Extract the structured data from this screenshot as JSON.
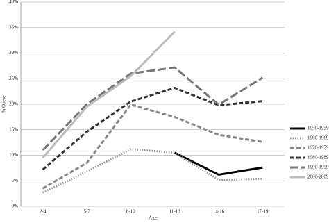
{
  "chart_data": {
    "type": "line",
    "x_label": "Age",
    "y_label": "% Obese",
    "categories": [
      "2-4",
      "5-7",
      "8-10",
      "11-13",
      "14-16",
      "17-19"
    ],
    "series": [
      {
        "name": "1950-1959",
        "color": "#000000",
        "style": "solid",
        "values": [
          null,
          null,
          null,
          10.5,
          6.2,
          7.6
        ]
      },
      {
        "name": "1960-1969",
        "color": "#999999",
        "style": "dotted",
        "values": [
          2.7,
          6.8,
          11.2,
          10.5,
          5.2,
          5.4
        ]
      },
      {
        "name": "1970-1979",
        "color": "#888888",
        "style": "dashed",
        "values": [
          3.5,
          8.5,
          19.9,
          17.5,
          14,
          12.6
        ]
      },
      {
        "name": "1980-1989",
        "color": "#333333",
        "style": "dashed",
        "values": [
          7.2,
          14.6,
          20.5,
          23.2,
          19.8,
          20.6
        ]
      },
      {
        "name": "1990-1999",
        "color": "#777777",
        "style": "longdash",
        "values": [
          11,
          20,
          26,
          27.2,
          19.9,
          25.2
        ]
      },
      {
        "name": "2000-2009",
        "color": "#bbbbbb",
        "style": "solid",
        "values": [
          9.5,
          19.5,
          25.5,
          34.2,
          null,
          null
        ]
      }
    ],
    "ylim": [
      0,
      40
    ],
    "yticks": [
      {
        "value": 0,
        "label": "0%"
      },
      {
        "value": 5,
        "label": "5%"
      },
      {
        "value": 10,
        "label": "10%"
      },
      {
        "value": 15,
        "label": "15%"
      },
      {
        "value": 20,
        "label": "20%"
      },
      {
        "value": 25,
        "label": "25%"
      },
      {
        "value": 30,
        "label": "30%"
      },
      {
        "value": 35,
        "label": "35%"
      },
      {
        "value": 40,
        "label": "40%"
      }
    ],
    "grid": true,
    "legend": "right"
  }
}
